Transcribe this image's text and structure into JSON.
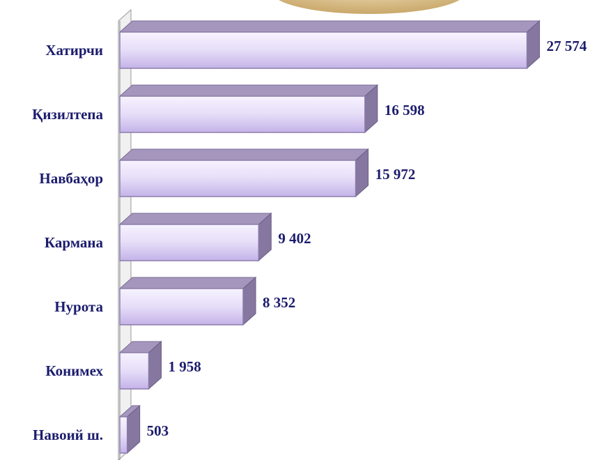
{
  "chart_data": {
    "type": "bar3d",
    "categories": [
      "Хатирчи",
      "Қизилтепа",
      "Навбаҳор",
      "Кармана",
      "Нурота",
      "Конимех",
      "Навоий ш."
    ],
    "values": [
      27574,
      16598,
      15972,
      9402,
      8352,
      1958,
      503
    ],
    "value_labels": [
      "27 574",
      "16 598",
      "15 972",
      "9 402",
      "8 352",
      "1 958",
      "503"
    ],
    "color": "#ddd2f5",
    "xlim": [
      0,
      30000
    ]
  }
}
